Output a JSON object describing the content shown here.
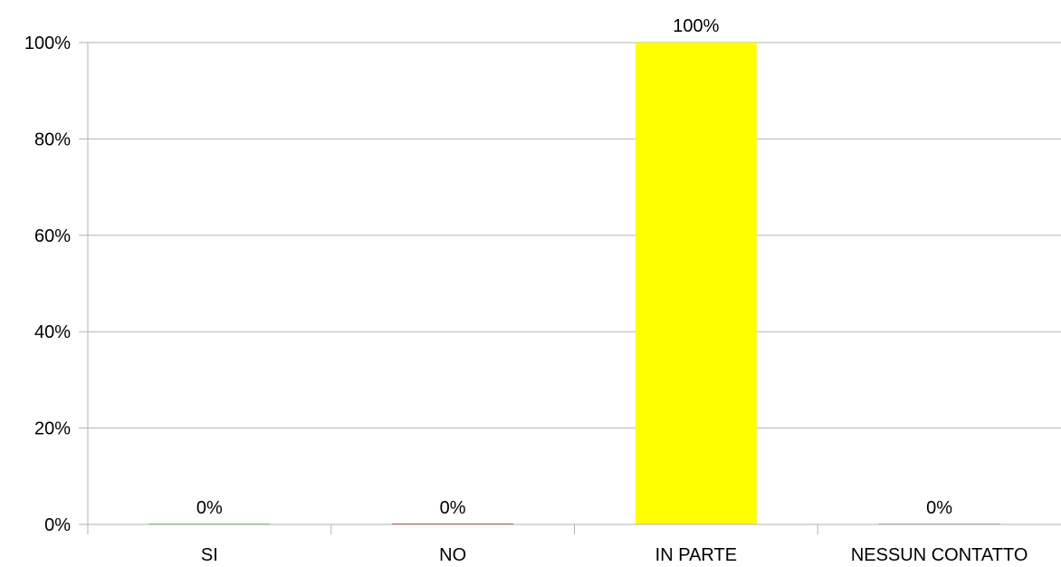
{
  "chart_data": {
    "type": "bar",
    "categories": [
      "SI",
      "NO",
      "IN PARTE",
      "NESSUN CONTATTO"
    ],
    "values": [
      0,
      0,
      100,
      0
    ],
    "data_labels": [
      "0%",
      "0%",
      "100%",
      "0%"
    ],
    "colors": [
      "#33cc33",
      "#cc0000",
      "#ffff00",
      "#999999"
    ],
    "ylim": [
      0,
      100
    ],
    "y_ticks": [
      0,
      20,
      40,
      60,
      80,
      100
    ],
    "y_tick_labels": [
      "0%",
      "20%",
      "40%",
      "60%",
      "80%",
      "100%"
    ],
    "grid": true,
    "legend": false,
    "title": "",
    "xlabel": "",
    "ylabel": ""
  }
}
